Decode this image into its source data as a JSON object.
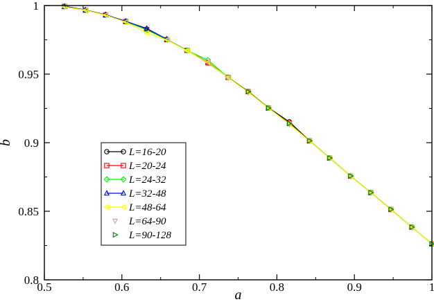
{
  "chart_data": {
    "type": "line",
    "xlabel": "a",
    "ylabel": "b",
    "xlim": [
      0.5,
      1.0
    ],
    "ylim": [
      0.8,
      1.0
    ],
    "x_ticks": [
      "0.5",
      "0.6",
      "0.7",
      "0.8",
      "0.9",
      "1"
    ],
    "y_ticks": [
      "0.8",
      "0.85",
      "0.9",
      "0.95",
      "1"
    ],
    "grid": false,
    "legend_position": "center-left",
    "series": [
      {
        "name": "L=16-20",
        "color": "#000000",
        "marker": "circle",
        "line": true,
        "x": [
          0.526,
          0.553,
          0.579,
          0.605,
          0.632,
          0.658,
          0.684,
          0.711,
          0.737,
          0.763,
          0.789,
          0.816,
          0.842,
          0.868,
          0.895,
          0.921,
          0.947,
          0.974,
          1.0
        ],
        "y": [
          0.9995,
          0.9968,
          0.9933,
          0.9885,
          0.9828,
          0.9753,
          0.9674,
          0.9587,
          0.9477,
          0.9374,
          0.9255,
          0.9152,
          0.9014,
          0.8889,
          0.8757,
          0.8636,
          0.8514,
          0.8384,
          0.8262
        ]
      },
      {
        "name": "L=20-24",
        "color": "#ff0000",
        "marker": "square",
        "line": true,
        "x": [
          0.526,
          0.553,
          0.579,
          0.605,
          0.632,
          0.658,
          0.684,
          0.711,
          0.737,
          0.763,
          0.789,
          0.816,
          0.842,
          0.868,
          0.895,
          0.921,
          0.947,
          0.974,
          1.0
        ],
        "y": [
          0.9993,
          0.9966,
          0.9931,
          0.9883,
          0.9824,
          0.9751,
          0.9673,
          0.9582,
          0.9476,
          0.9372,
          0.9253,
          0.9142,
          0.9013,
          0.8888,
          0.8756,
          0.8636,
          0.8513,
          0.8384,
          0.8262
        ]
      },
      {
        "name": "L=24-32",
        "color": "#00ff00",
        "marker": "diamond",
        "line": true,
        "x": [
          0.526,
          0.553,
          0.579,
          0.605,
          0.632,
          0.658,
          0.684,
          0.711,
          0.737,
          0.763,
          0.789,
          0.816,
          0.842,
          0.868,
          0.895,
          0.921,
          0.947,
          0.974,
          1.0
        ],
        "y": [
          0.9993,
          0.9966,
          0.9931,
          0.9883,
          0.9822,
          0.9752,
          0.9672,
          0.9602,
          0.9476,
          0.937,
          0.9253,
          0.9138,
          0.9013,
          0.8888,
          0.8757,
          0.8636,
          0.8513,
          0.8384,
          0.8262
        ]
      },
      {
        "name": "L=32-48",
        "color": "#0000ff",
        "marker": "triangle-up",
        "line": true,
        "x": [
          0.526,
          0.553,
          0.579,
          0.605,
          0.632,
          0.658
        ],
        "y": [
          0.9993,
          0.9967,
          0.9932,
          0.9885,
          0.9833,
          0.9755
        ]
      },
      {
        "name": "L=48-64",
        "color": "#ffff00",
        "marker": "triangle-left",
        "line": true,
        "x": [
          0.526,
          0.553,
          0.579,
          0.605,
          0.632,
          0.658,
          0.684,
          0.711,
          0.737,
          0.763,
          0.789,
          0.816,
          0.842,
          0.868,
          0.895,
          0.921,
          0.947,
          0.974,
          1.0
        ],
        "y": [
          0.999,
          0.9966,
          0.993,
          0.988,
          0.98,
          0.975,
          0.9672,
          0.9585,
          0.9475,
          0.9368,
          0.9253,
          0.9135,
          0.9012,
          0.8888,
          0.8756,
          0.8634,
          0.8512,
          0.8384,
          0.8262
        ]
      },
      {
        "name": "L=64-90",
        "color": "#d3a0a8",
        "marker": "triangle-down",
        "line": false,
        "x": [
          0.711,
          0.737,
          0.763,
          0.789,
          0.816,
          0.842,
          0.868,
          0.895,
          0.921,
          0.947,
          0.974,
          1.0
        ],
        "y": [
          0.959,
          0.9474,
          0.9366,
          0.9252,
          0.9134,
          0.9012,
          0.8887,
          0.8755,
          0.8634,
          0.8512,
          0.8383,
          0.8262
        ]
      },
      {
        "name": "L=90-128",
        "color": "#008000",
        "marker": "triangle-right",
        "line": false,
        "x": [
          0.763,
          0.789,
          0.816,
          0.842,
          0.868,
          0.895,
          0.921,
          0.947,
          0.974,
          1.0
        ],
        "y": [
          0.9372,
          0.9252,
          0.914,
          0.9013,
          0.8888,
          0.8757,
          0.8636,
          0.8513,
          0.8384,
          0.8262
        ]
      }
    ]
  }
}
